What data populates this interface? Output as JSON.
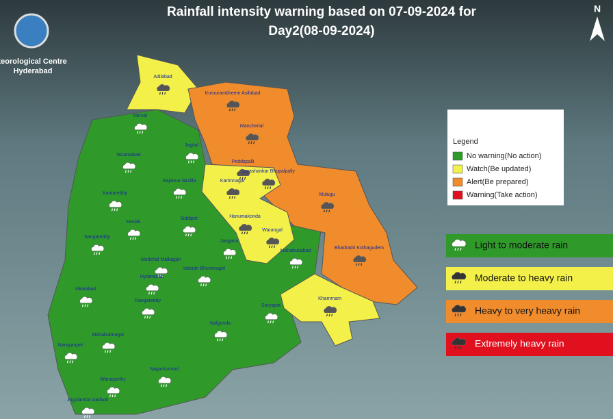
{
  "header": {
    "title_line1": "Rainfall intensity warning based on 07-09-2024 for",
    "title_line2": "Day2(08-09-2024)",
    "org_line1": "Meteorological Centre",
    "org_line2": "Hyderabad",
    "north": "N"
  },
  "legend": {
    "title": "Legend",
    "levels": [
      {
        "label": "No warning(No action)",
        "color": "#2f9a2a"
      },
      {
        "label": "Watch(Be updated)",
        "color": "#f3f04a"
      },
      {
        "label": "Alert(Be prepared)",
        "color": "#f08c2c"
      },
      {
        "label": "Warning(Take action)",
        "color": "#e0101e"
      }
    ]
  },
  "rain_legend": [
    {
      "label": "Light to moderate rain",
      "color": "#2f9a2a"
    },
    {
      "label": "Moderate to heavy rain",
      "color": "#f3f04a"
    },
    {
      "label": "Heavy to very heavy rain",
      "color": "#f08c2c"
    },
    {
      "label": "Extremely heavy rain",
      "color": "#e0101e"
    }
  ],
  "districts": [
    {
      "name": "Adilabad",
      "level": 1
    },
    {
      "name": "Kumurambheem Asifabad",
      "level": 2
    },
    {
      "name": "Mancherial",
      "level": 2
    },
    {
      "name": "Nirmal",
      "level": 0
    },
    {
      "name": "Nizamabad",
      "level": 0
    },
    {
      "name": "Jagtial",
      "level": 0
    },
    {
      "name": "Peddapalli",
      "level": 1
    },
    {
      "name": "Jayashankar Bhupalpally",
      "level": 2
    },
    {
      "name": "Karimnagar",
      "level": 1
    },
    {
      "name": "Mulugu",
      "level": 2
    },
    {
      "name": "Rajanna Sircilla",
      "level": 0
    },
    {
      "name": "Kamareddy",
      "level": 0
    },
    {
      "name": "Siddipet",
      "level": 0
    },
    {
      "name": "Hanumakonda",
      "level": 1
    },
    {
      "name": "Warangal",
      "level": 1
    },
    {
      "name": "Medak",
      "level": 0
    },
    {
      "name": "Sangareddy",
      "level": 0
    },
    {
      "name": "Jangaon",
      "level": 0
    },
    {
      "name": "Mahabubabad",
      "level": 0
    },
    {
      "name": "Bhadradri Kothagudem",
      "level": 2
    },
    {
      "name": "Medchal Malkajgiri",
      "level": 0
    },
    {
      "name": "Yadadri Bhuvanagiri",
      "level": 0
    },
    {
      "name": "Hyderabad",
      "level": 0
    },
    {
      "name": "Vikarabad",
      "level": 0
    },
    {
      "name": "Rangareddy",
      "level": 0
    },
    {
      "name": "Suryapet",
      "level": 0
    },
    {
      "name": "Khammam",
      "level": 1
    },
    {
      "name": "Mahabubnagar",
      "level": 0
    },
    {
      "name": "Nalgonda",
      "level": 0
    },
    {
      "name": "Narayanpet",
      "level": 0
    },
    {
      "name": "Nagarkurnool",
      "level": 0
    },
    {
      "name": "Wanaparthy",
      "level": 0
    },
    {
      "name": "Jogulamba Gadwal",
      "level": 0
    }
  ]
}
